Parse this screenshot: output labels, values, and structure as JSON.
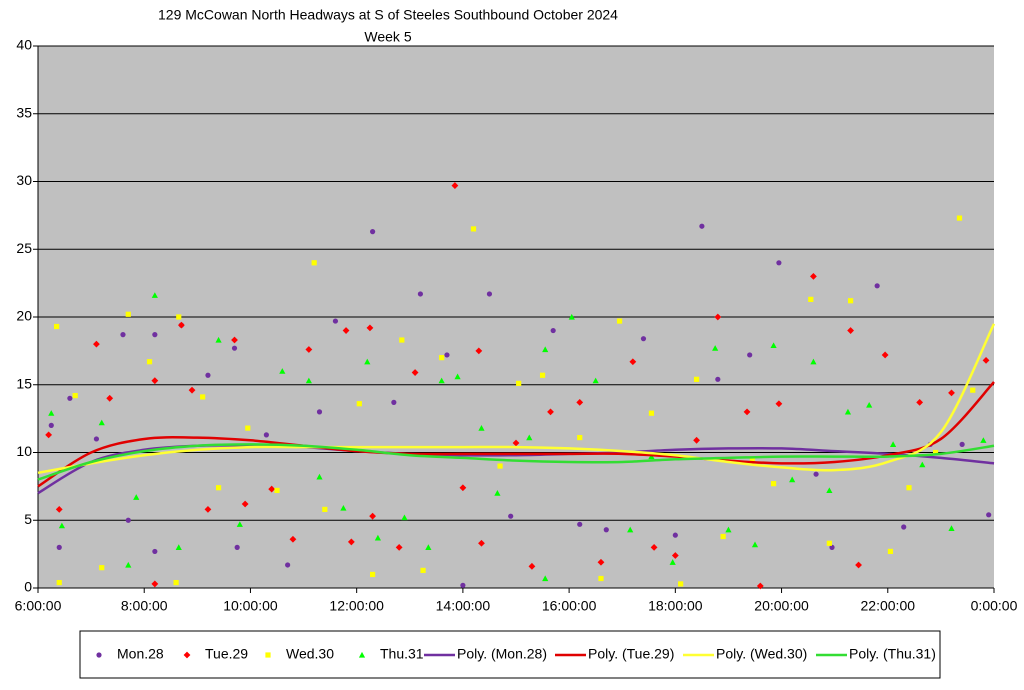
{
  "chart_data": {
    "type": "scatter",
    "title": "129 McCowan North Headways at S of Steeles Southbound October 2024",
    "subtitle": "Week 5",
    "xlim": [
      6,
      24
    ],
    "xticks": [
      {
        "value": 6,
        "label": "6:00:00"
      },
      {
        "value": 8,
        "label": "8:00:00"
      },
      {
        "value": 10,
        "label": "10:00:00"
      },
      {
        "value": 12,
        "label": "12:00:00"
      },
      {
        "value": 14,
        "label": "14:00:00"
      },
      {
        "value": 16,
        "label": "16:00:00"
      },
      {
        "value": 18,
        "label": "18:00:00"
      },
      {
        "value": 20,
        "label": "20:00:00"
      },
      {
        "value": 22,
        "label": "22:00:00"
      },
      {
        "value": 24,
        "label": "0:00:00"
      }
    ],
    "ylim": [
      0,
      40
    ],
    "yticks": [
      0,
      5,
      10,
      15,
      20,
      25,
      30,
      35,
      40
    ],
    "grid": true,
    "legend": "bottom",
    "series": [
      {
        "name": "Mon.28",
        "type": "scatter",
        "marker": "circle",
        "color": "#7030a0",
        "x": [
          6.25,
          6.4,
          6.6,
          7.1,
          7.6,
          7.7,
          8.2,
          8.2,
          8.7,
          9.2,
          9.7,
          9.75,
          10.3,
          10.7,
          11.3,
          11.6,
          12.3,
          12.7,
          13.2,
          13.7,
          14,
          14.5,
          14.9,
          15.7,
          16.2,
          16.7,
          17.4,
          18,
          18.5,
          18.8,
          19.4,
          19.95,
          20.65,
          20.95,
          21.8,
          22.3,
          22.8,
          23.4,
          23.9
        ],
        "values": [
          12,
          3,
          14,
          11,
          18.7,
          5,
          18.7,
          2.7,
          19.4,
          15.7,
          17.7,
          3,
          11.3,
          1.7,
          13,
          19.7,
          26.3,
          13.7,
          21.7,
          17.2,
          0.2,
          21.7,
          5.3,
          19,
          4.7,
          4.3,
          18.4,
          3.9,
          26.7,
          15.4,
          17.2,
          24,
          8.4,
          3,
          22.3,
          4.5,
          10.6,
          10.6,
          5.4
        ]
      },
      {
        "name": "Tue.29",
        "type": "scatter",
        "marker": "diamond",
        "color": "#ff0000",
        "x": [
          6.2,
          6.4,
          7.1,
          7.35,
          8.2,
          8.2,
          8.7,
          8.9,
          9.2,
          9.7,
          9.9,
          10.4,
          10.8,
          11.1,
          11.8,
          11.9,
          12.25,
          12.3,
          12.8,
          13.1,
          13.85,
          14,
          14.3,
          14.35,
          15,
          15.3,
          15.65,
          16.2,
          16.6,
          17.2,
          17.6,
          18,
          18.4,
          18.8,
          19.35,
          19.6,
          19.95,
          20.6,
          21.3,
          21.45,
          21.95,
          22.6,
          23.2,
          23.85
        ],
        "values": [
          11.3,
          5.8,
          18,
          14,
          15.3,
          0.3,
          19.4,
          14.6,
          5.8,
          18.3,
          6.2,
          7.3,
          3.6,
          17.6,
          19,
          3.4,
          19.2,
          5.3,
          3,
          15.9,
          29.7,
          7.4,
          17.5,
          3.3,
          10.7,
          1.6,
          13,
          13.7,
          1.9,
          16.7,
          3,
          2.4,
          10.9,
          20,
          13,
          0.15,
          13.6,
          23,
          19,
          1.7,
          17.2,
          13.7,
          14.4,
          16.8
        ]
      },
      {
        "name": "Wed.30",
        "type": "scatter",
        "marker": "square",
        "color": "#ffff00",
        "x": [
          6.35,
          6.4,
          6.7,
          7.2,
          7.7,
          8.1,
          8.65,
          8.6,
          9.1,
          9.4,
          9.95,
          10.5,
          11.2,
          11.4,
          12.05,
          12.3,
          12.85,
          13.25,
          13.6,
          14.2,
          14.7,
          15.05,
          15.5,
          16.2,
          16.6,
          16.95,
          17.55,
          18.1,
          18.4,
          18.9,
          19.45,
          19.85,
          20.55,
          20.9,
          21.3,
          22.05,
          22.4,
          22.9,
          23.35,
          23.6
        ],
        "values": [
          19.3,
          0.4,
          14.2,
          1.5,
          20.2,
          16.7,
          20,
          0.4,
          14.1,
          7.4,
          11.8,
          7.2,
          24,
          5.8,
          13.6,
          1,
          18.3,
          1.3,
          17,
          26.5,
          9,
          15.1,
          15.7,
          11.1,
          0.7,
          19.7,
          12.9,
          0.3,
          15.4,
          3.8,
          9.4,
          7.7,
          21.3,
          3.3,
          21.2,
          2.7,
          7.4,
          10,
          27.3,
          14.6
        ]
      },
      {
        "name": "Thu.31",
        "type": "scatter",
        "marker": "triangle",
        "color": "#00ff00",
        "x": [
          6.25,
          6.45,
          7.2,
          7.7,
          7.85,
          8.2,
          8.65,
          9.4,
          9.8,
          10.6,
          11.1,
          11.3,
          11.75,
          12.2,
          12.4,
          12.9,
          13.35,
          13.6,
          13.9,
          14.35,
          14.65,
          15.25,
          15.55,
          15.55,
          16.05,
          16.5,
          17.15,
          17.55,
          17.95,
          18.75,
          19,
          19.5,
          19.85,
          20.2,
          20.6,
          20.9,
          21.25,
          21.65,
          22.1,
          22.65,
          23.2,
          23.8
        ],
        "values": [
          12.9,
          4.6,
          12.2,
          1.7,
          6.7,
          21.6,
          3,
          18.3,
          4.7,
          16,
          15.3,
          8.2,
          5.9,
          16.7,
          3.7,
          5.2,
          3,
          15.3,
          15.6,
          11.8,
          7,
          11.1,
          17.6,
          0.7,
          20,
          15.3,
          4.3,
          9.7,
          1.9,
          17.7,
          4.3,
          3.2,
          17.9,
          8,
          16.7,
          7.2,
          13,
          13.5,
          10.6,
          9.1,
          4.4,
          10.9
        ]
      },
      {
        "name": "Poly. (Mon.28)",
        "type": "line",
        "color": "#7030a0",
        "x": [
          6,
          7,
          8,
          9,
          10,
          11,
          12,
          13,
          14,
          15,
          16,
          17,
          18,
          19,
          20,
          21,
          22,
          23,
          24
        ],
        "values": [
          7,
          9.3,
          10.2,
          10.5,
          10.5,
          10.4,
          10.1,
          9.9,
          9.8,
          9.8,
          9.9,
          10,
          10.2,
          10.3,
          10.3,
          10.1,
          9.9,
          9.6,
          9.2
        ]
      },
      {
        "name": "Poly. (Tue.29)",
        "type": "line",
        "color": "#e00000",
        "x": [
          6,
          7,
          8,
          9,
          10,
          11,
          12,
          13,
          14,
          15,
          16,
          17,
          18,
          19,
          20,
          21,
          22,
          23,
          24
        ],
        "values": [
          7.5,
          10,
          11,
          11.1,
          10.9,
          10.5,
          10.1,
          9.9,
          9.9,
          9.9,
          9.9,
          9.9,
          9.7,
          9.4,
          9.2,
          9.3,
          9.8,
          11,
          15.2
        ]
      },
      {
        "name": "Poly. (Wed.30)",
        "type": "line",
        "color": "#ffff33",
        "x": [
          6,
          7,
          8,
          9,
          10,
          11,
          12,
          13,
          14,
          15,
          16,
          17,
          18,
          19,
          20,
          21,
          22,
          23,
          24
        ],
        "values": [
          8.5,
          9.2,
          9.8,
          10.2,
          10.4,
          10.4,
          10.4,
          10.4,
          10.4,
          10.4,
          10.3,
          10.1,
          9.8,
          9.3,
          8.9,
          8.7,
          9.3,
          11.5,
          19.5
        ]
      },
      {
        "name": "Poly. (Thu.31)",
        "type": "line",
        "color": "#33dd33",
        "x": [
          6,
          7,
          8,
          9,
          10,
          11,
          12,
          13,
          14,
          15,
          16,
          17,
          18,
          19,
          20,
          21,
          22,
          23,
          24
        ],
        "values": [
          8,
          9.3,
          10.1,
          10.5,
          10.6,
          10.5,
          10.2,
          9.8,
          9.6,
          9.4,
          9.3,
          9.3,
          9.5,
          9.6,
          9.7,
          9.7,
          9.7,
          9.9,
          10.5
        ]
      }
    ]
  }
}
